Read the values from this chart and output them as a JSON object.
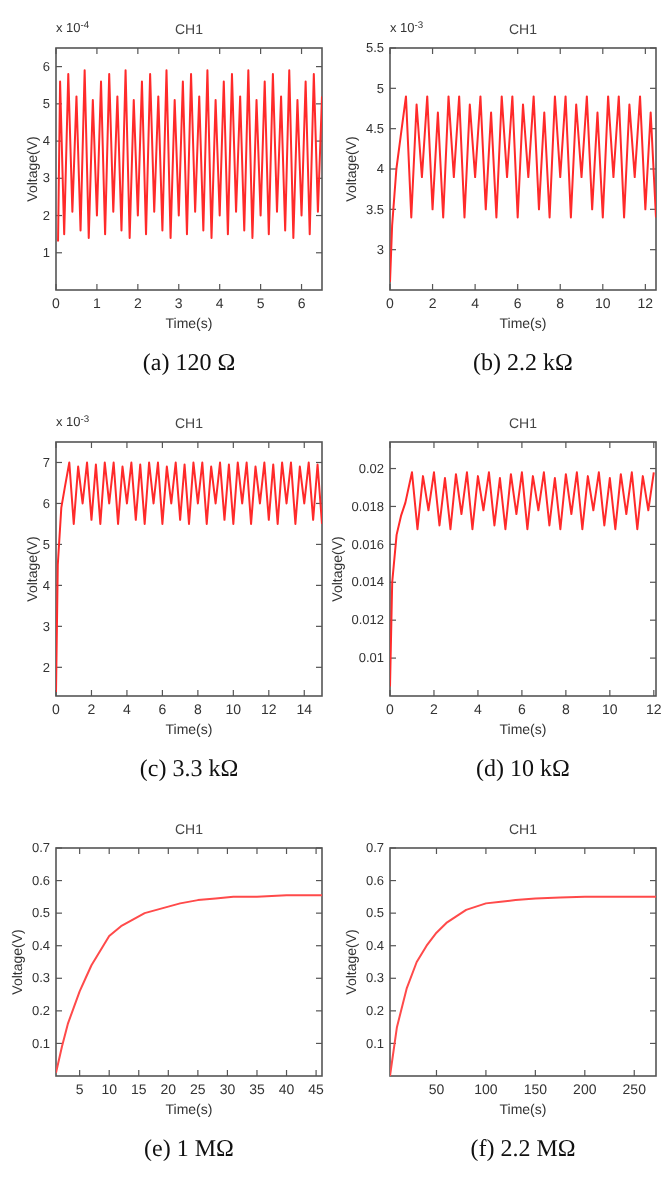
{
  "chart_data": [
    {
      "type": "line",
      "title": "CH1",
      "subtitle": "(a) 120 Ω",
      "xlabel": "Time(s)",
      "ylabel": "Voltage(V)",
      "annotations": [
        "x 10$^{-4}$"
      ],
      "xlim": [
        0,
        6.5
      ],
      "ylim": [
        0,
        6.5
      ],
      "xticks": [
        0,
        1,
        2,
        3,
        4,
        5,
        6
      ],
      "yticks": [
        1,
        2,
        3,
        4,
        5,
        6
      ],
      "series": [
        {
          "color": "#ff2a2a",
          "x": [
            0.05,
            0.1,
            0.2,
            0.3,
            0.4,
            0.5,
            0.6,
            0.7,
            0.8,
            0.9,
            1.0,
            1.1,
            1.2,
            1.3,
            1.4,
            1.5,
            1.6,
            1.7,
            1.8,
            1.9,
            2.0,
            2.1,
            2.2,
            2.3,
            2.4,
            2.5,
            2.6,
            2.7,
            2.8,
            2.9,
            3.0,
            3.1,
            3.2,
            3.3,
            3.4,
            3.5,
            3.6,
            3.7,
            3.8,
            3.9,
            4.0,
            4.1,
            4.2,
            4.3,
            4.4,
            4.5,
            4.6,
            4.7,
            4.8,
            4.9,
            5.0,
            5.1,
            5.2,
            5.3,
            5.4,
            5.5,
            5.6,
            5.7,
            5.8,
            5.9,
            6.0,
            6.1,
            6.2,
            6.3,
            6.4,
            6.5
          ],
          "values": [
            1.3,
            5.6,
            1.5,
            5.8,
            2.1,
            5.2,
            1.6,
            5.9,
            1.4,
            5.1,
            2.0,
            5.6,
            1.5,
            5.8,
            2.1,
            5.2,
            1.6,
            5.9,
            1.4,
            5.1,
            2.0,
            5.6,
            1.5,
            5.8,
            2.1,
            5.2,
            1.6,
            5.9,
            1.4,
            5.1,
            2.0,
            5.6,
            1.5,
            5.8,
            2.1,
            5.2,
            1.6,
            5.9,
            1.4,
            5.1,
            2.0,
            5.6,
            1.5,
            5.8,
            2.1,
            5.2,
            1.6,
            5.9,
            1.4,
            5.1,
            2.0,
            5.6,
            1.5,
            5.8,
            2.1,
            5.2,
            1.6,
            5.9,
            1.4,
            5.1,
            2.0,
            5.6,
            1.5,
            5.8,
            2.1,
            5.2
          ]
        }
      ]
    },
    {
      "type": "line",
      "title": "CH1",
      "subtitle": "(b) 2.2 kΩ",
      "xlabel": "Time(s)",
      "ylabel": "Voltage(V)",
      "annotations": [
        "x 10$^{-3}$"
      ],
      "xlim": [
        0,
        12.5
      ],
      "ylim": [
        2.5,
        5.5
      ],
      "xticks": [
        0,
        2,
        4,
        6,
        8,
        10,
        12
      ],
      "yticks": [
        3,
        3.5,
        4,
        4.5,
        5,
        5.5
      ],
      "series": [
        {
          "color": "#ff2a2a",
          "x": [
            0,
            0.1,
            0.3,
            0.5,
            0.75,
            1,
            1.25,
            1.5,
            1.75,
            2,
            2.25,
            2.5,
            2.75,
            3,
            3.25,
            3.5,
            3.75,
            4,
            4.25,
            4.5,
            4.75,
            5,
            5.25,
            5.5,
            5.75,
            6,
            6.25,
            6.5,
            6.75,
            7,
            7.25,
            7.5,
            7.75,
            8,
            8.25,
            8.5,
            8.75,
            9,
            9.25,
            9.5,
            9.75,
            10,
            10.25,
            10.5,
            10.75,
            11,
            11.25,
            11.5,
            11.75,
            12,
            12.25,
            12.5
          ],
          "values": [
            2.6,
            3.3,
            4.0,
            4.4,
            4.9,
            3.4,
            4.8,
            3.9,
            4.9,
            3.5,
            4.7,
            3.4,
            4.9,
            3.9,
            4.9,
            3.4,
            4.8,
            3.9,
            4.9,
            3.5,
            4.7,
            3.4,
            4.9,
            3.9,
            4.9,
            3.4,
            4.8,
            3.9,
            4.9,
            3.5,
            4.7,
            3.4,
            4.9,
            3.9,
            4.9,
            3.4,
            4.8,
            3.9,
            4.9,
            3.5,
            4.7,
            3.4,
            4.9,
            3.9,
            4.9,
            3.4,
            4.8,
            3.9,
            4.9,
            3.5,
            4.7,
            3.4
          ]
        }
      ]
    },
    {
      "type": "line",
      "title": "CH1",
      "subtitle": "(c) 3.3 kΩ",
      "xlabel": "Time(s)",
      "ylabel": "Voltage(V)",
      "annotations": [
        "x 10$^{-3}$"
      ],
      "xlim": [
        0,
        15
      ],
      "ylim": [
        1.3,
        7.5
      ],
      "xticks": [
        0,
        2,
        4,
        6,
        8,
        10,
        12,
        14
      ],
      "yticks": [
        2,
        3,
        4,
        5,
        6,
        7
      ],
      "series": [
        {
          "color": "#ff2a2a",
          "x": [
            0,
            0.1,
            0.3,
            0.5,
            0.75,
            1,
            1.25,
            1.5,
            1.75,
            2,
            2.25,
            2.5,
            2.75,
            3,
            3.25,
            3.5,
            3.75,
            4,
            4.25,
            4.5,
            4.75,
            5,
            5.25,
            5.5,
            5.75,
            6,
            6.25,
            6.5,
            6.75,
            7,
            7.25,
            7.5,
            7.75,
            8,
            8.25,
            8.5,
            8.75,
            9,
            9.25,
            9.5,
            9.75,
            10,
            10.25,
            10.5,
            10.75,
            11,
            11.25,
            11.5,
            11.75,
            12,
            12.25,
            12.5,
            12.75,
            13,
            13.25,
            13.5,
            13.75,
            14,
            14.25,
            14.5,
            14.75,
            15
          ],
          "values": [
            1.4,
            4.5,
            5.9,
            6.4,
            7.0,
            5.5,
            6.9,
            6.0,
            7.0,
            5.6,
            6.95,
            5.5,
            7.0,
            6.0,
            7.0,
            5.5,
            6.9,
            6.0,
            7.0,
            5.6,
            6.95,
            5.5,
            7.0,
            6.0,
            7.0,
            5.5,
            6.9,
            6.0,
            7.0,
            5.6,
            6.95,
            5.5,
            7.0,
            6.0,
            7.0,
            5.5,
            6.9,
            6.0,
            7.0,
            5.6,
            6.95,
            5.5,
            7.0,
            6.0,
            7.0,
            5.5,
            6.9,
            6.0,
            7.0,
            5.6,
            6.95,
            5.5,
            7.0,
            6.0,
            7.0,
            5.5,
            6.9,
            6.0,
            7.0,
            5.6,
            6.95,
            5.5
          ]
        }
      ]
    },
    {
      "type": "line",
      "title": "CH1",
      "subtitle": "(d) 10 kΩ",
      "xlabel": "Time(s)",
      "ylabel": "Voltage(V)",
      "xlim": [
        0,
        12.1
      ],
      "ylim": [
        0.008,
        0.0214
      ],
      "xticks": [
        0,
        2,
        4,
        6,
        8,
        10,
        12
      ],
      "yticks": [
        0.01,
        0.012,
        0.014,
        0.016,
        0.018,
        0.02
      ],
      "series": [
        {
          "color": "#ff2a2a",
          "x": [
            0,
            0.1,
            0.3,
            0.5,
            0.7,
            1,
            1.25,
            1.5,
            1.75,
            2,
            2.25,
            2.5,
            2.75,
            3,
            3.25,
            3.5,
            3.75,
            4,
            4.25,
            4.5,
            4.75,
            5,
            5.25,
            5.5,
            5.75,
            6,
            6.25,
            6.5,
            6.75,
            7,
            7.25,
            7.5,
            7.75,
            8,
            8.25,
            8.5,
            8.75,
            9,
            9.25,
            9.5,
            9.75,
            10,
            10.25,
            10.5,
            10.75,
            11,
            11.25,
            11.5,
            11.75,
            12
          ],
          "values": [
            0.0085,
            0.014,
            0.0165,
            0.0175,
            0.0182,
            0.0198,
            0.0168,
            0.0196,
            0.0178,
            0.0198,
            0.017,
            0.0195,
            0.0168,
            0.0197,
            0.0176,
            0.0198,
            0.0168,
            0.0196,
            0.0178,
            0.0198,
            0.017,
            0.0195,
            0.0168,
            0.0197,
            0.0176,
            0.0198,
            0.0168,
            0.0196,
            0.0178,
            0.0198,
            0.017,
            0.0195,
            0.0168,
            0.0197,
            0.0176,
            0.0198,
            0.0168,
            0.0196,
            0.0178,
            0.0198,
            0.017,
            0.0195,
            0.0168,
            0.0197,
            0.0176,
            0.0198,
            0.0168,
            0.0196,
            0.0178,
            0.0198
          ]
        }
      ]
    },
    {
      "type": "line",
      "title": "CH1",
      "subtitle": "(e) 1 MΩ",
      "xlabel": "Time(s)",
      "ylabel": "Voltage(V)",
      "xlim": [
        1,
        46
      ],
      "ylim": [
        0,
        0.7
      ],
      "xticks": [
        5,
        10,
        15,
        20,
        25,
        30,
        35,
        40,
        45
      ],
      "yticks": [
        0.1,
        0.2,
        0.3,
        0.4,
        0.5,
        0.6,
        0.7
      ],
      "series": [
        {
          "color": "#ff4a4a",
          "x": [
            1,
            2,
            3,
            4,
            5,
            6,
            7,
            8,
            9,
            10,
            12,
            14,
            16,
            18,
            20,
            22,
            25,
            28,
            31,
            35,
            40,
            46
          ],
          "values": [
            0.01,
            0.09,
            0.16,
            0.21,
            0.26,
            0.3,
            0.34,
            0.37,
            0.4,
            0.43,
            0.46,
            0.48,
            0.5,
            0.51,
            0.52,
            0.53,
            0.54,
            0.545,
            0.55,
            0.55,
            0.555,
            0.555
          ]
        }
      ]
    },
    {
      "type": "line",
      "title": "CH1",
      "subtitle": "(f) 2.2 MΩ",
      "xlabel": "Time(s)",
      "ylabel": "Voltage(V)",
      "xlim": [
        3,
        272
      ],
      "ylim": [
        0,
        0.7
      ],
      "xticks": [
        50,
        100,
        150,
        200,
        250
      ],
      "yticks": [
        0.1,
        0.2,
        0.3,
        0.4,
        0.5,
        0.6,
        0.7
      ],
      "series": [
        {
          "color": "#ff4a4a",
          "x": [
            3,
            10,
            20,
            30,
            40,
            50,
            60,
            70,
            80,
            90,
            100,
            115,
            130,
            150,
            175,
            200,
            230,
            272
          ],
          "values": [
            0,
            0.15,
            0.27,
            0.35,
            0.4,
            0.44,
            0.47,
            0.49,
            0.51,
            0.52,
            0.53,
            0.535,
            0.54,
            0.545,
            0.548,
            0.55,
            0.55,
            0.55
          ]
        }
      ]
    }
  ]
}
